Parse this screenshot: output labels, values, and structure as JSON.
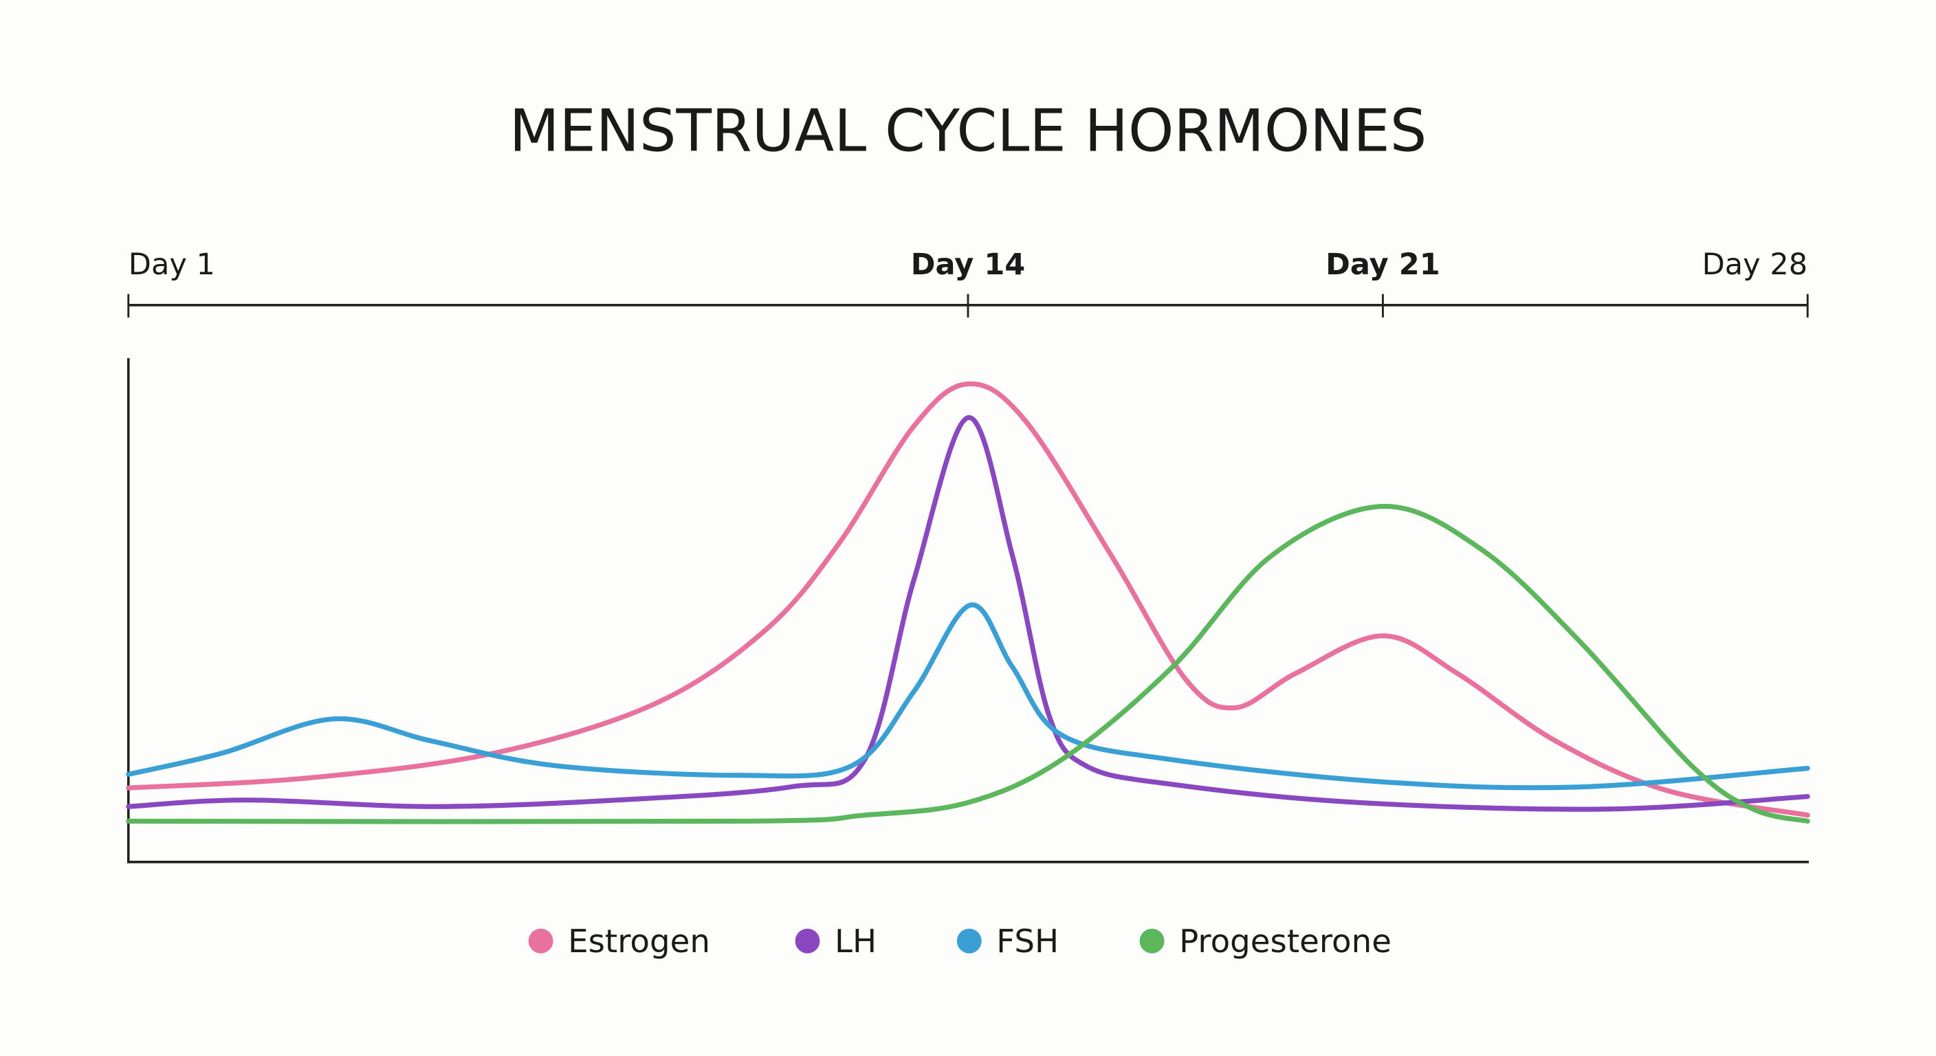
{
  "chart_data": {
    "type": "line",
    "title": "MENSTRUAL CYCLE HORMONES",
    "xlabel": "",
    "ylabel": "",
    "x_ticks": [
      {
        "day": 1,
        "label": "Day 1",
        "bold": false
      },
      {
        "day": 14,
        "label": "Day 14",
        "bold": true
      },
      {
        "day": 21,
        "label": "Day 21",
        "bold": true
      },
      {
        "day": 28,
        "label": "Day 28",
        "bold": false
      }
    ],
    "xlim": [
      1,
      28
    ],
    "ylim": [
      0,
      100
    ],
    "y_ticks_shown": false,
    "grid": false,
    "legend_position": "bottom",
    "series": [
      {
        "name": "Estrogen",
        "color": "#e8719e",
        "x": [
          1,
          3.8,
          6.66,
          9.15,
          10.87,
          12.0,
          13.16,
          14,
          14.96,
          16.42,
          17.67,
          18.5,
          19.54,
          21,
          22.22,
          23.85,
          25.68,
          28
        ],
        "y": [
          14.7,
          16.7,
          21.6,
          31.4,
          46.1,
          63.2,
          86.5,
          94.9,
          87.7,
          60.8,
          36.3,
          30.6,
          37.5,
          44.9,
          37.5,
          24.0,
          14.2,
          9.3
        ]
      },
      {
        "name": "LH",
        "color": "#8a48c0",
        "x": [
          1,
          2.84,
          5.7,
          8.57,
          11.25,
          12.4,
          13.16,
          14,
          14.75,
          15.37,
          15.99,
          17.45,
          20.58,
          24.68,
          28
        ],
        "y": [
          11.0,
          12.3,
          11.0,
          12.3,
          14.9,
          20.3,
          55.9,
          88.2,
          60.8,
          29.0,
          19.1,
          15.4,
          11.8,
          10.5,
          13.0
        ]
      },
      {
        "name": "FSH",
        "color": "#3a9fd4",
        "x": [
          1,
          2.45,
          4.18,
          5.7,
          7.62,
          10.48,
          12.2,
          13.16,
          14.04,
          14.75,
          15.58,
          17.45,
          21,
          24.26,
          28
        ],
        "y": [
          17.4,
          21.6,
          28.4,
          24.0,
          19.1,
          17.2,
          19.1,
          33.8,
          51.0,
          38.7,
          25.2,
          20.3,
          15.9,
          14.9,
          18.6
        ]
      },
      {
        "name": "Progesterone",
        "color": "#5cb65c",
        "x": [
          1,
          10.48,
          12.4,
          14,
          15.58,
          17.45,
          19.12,
          21,
          22.63,
          24.26,
          26.09,
          27.1,
          28
        ],
        "y": [
          8.1,
          8.1,
          9.3,
          11.8,
          20.3,
          38.7,
          60.8,
          70.6,
          62.0,
          43.6,
          19.1,
          10.5,
          8.1
        ]
      }
    ]
  }
}
